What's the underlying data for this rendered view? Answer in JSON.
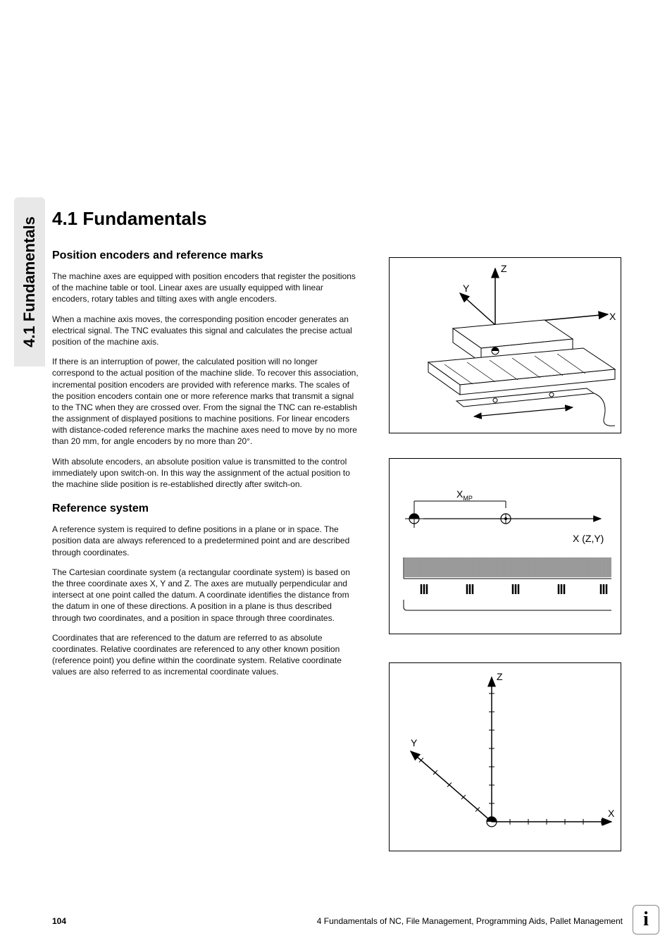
{
  "sideTab": "4.1 Fundamentals",
  "heading": "4.1  Fundamentals",
  "section1": {
    "title": "Position encoders and reference marks",
    "p1": "The machine axes are equipped with position encoders that register the positions of the machine table or tool. Linear axes are usually equipped with linear encoders, rotary tables and tilting axes with angle encoders.",
    "p2": "When a machine axis moves, the corresponding position encoder generates an electrical signal. The TNC evaluates this signal and calculates the precise actual position of the machine axis.",
    "p3": "If there is an interruption of power, the calculated position will no longer correspond to the actual position of the machine slide. To recover this association, incremental position encoders are provided with reference marks. The scales of the position encoders contain one or more reference marks that transmit a signal to the TNC when they are crossed over. From the signal the TNC can re-establish the assignment of displayed positions to machine positions. For linear encoders with distance-coded reference marks the machine axes need to move by no more than 20 mm, for angle encoders by no more than 20°.",
    "p4": "With absolute encoders, an absolute position value is transmitted to the control immediately upon switch-on. In this way the assignment of the actual position to the machine slide position is re-established directly after switch-on."
  },
  "section2": {
    "title": "Reference system",
    "p1": "A reference system is required to define positions in a plane or in space. The position data are always referenced to a predetermined point and are described through coordinates.",
    "p2": "The Cartesian coordinate system (a rectangular coordinate system) is based on the three coordinate axes X, Y and Z. The axes are mutually perpendicular and intersect at one point called the datum. A coordinate identifies the distance from the datum in one of these directions. A position in a plane is thus described through two coordinates, and a position in space through three coordinates.",
    "p3": "Coordinates that are referenced to the datum are referred to as absolute coordinates. Relative coordinates are referenced to any other known position (reference point) you define within the coordinate system. Relative coordinate values are also referred to as incremental coordinate values."
  },
  "fig1": {
    "labels": {
      "x": "X",
      "y": "Y",
      "z": "Z"
    }
  },
  "fig2": {
    "labels": {
      "xmp": "X",
      "xmp_sub": "MP",
      "axis": "X (Z,Y)"
    }
  },
  "fig3": {
    "labels": {
      "x": "X",
      "y": "Y",
      "z": "Z"
    }
  },
  "footer": {
    "page": "104",
    "chapter": "4 Fundamentals of NC, File Management, Programming Aids, Pallet Management"
  },
  "infoIcon": "i",
  "colors": {
    "text": "#000000",
    "bg": "#ffffff",
    "tab_bg": "#e8e8e8",
    "figure_border": "#000000",
    "diagram_stroke": "#000000"
  },
  "typography": {
    "h1_size": 26,
    "h2_size": 16,
    "body_size": 12,
    "axis_label_size": 14
  }
}
